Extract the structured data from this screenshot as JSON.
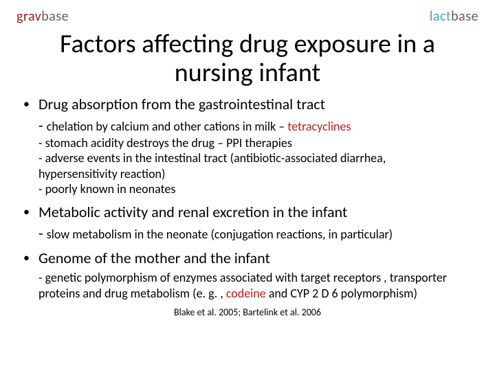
{
  "logos": {
    "left": {
      "part1": "grav",
      "part2": "base"
    },
    "right": {
      "part1": "lact",
      "part2": "base"
    }
  },
  "title": "Factors affecting drug exposure in a nursing infant",
  "bullets": [
    {
      "heading": "Drug absorption from the gastrointestinal tract",
      "sub_lead_prefix": "- ",
      "sub_lead_main": "chelation by calcium and other cations in milk – ",
      "sub_lead_highlight": "tetracyclines",
      "sub_lines": [
        "-  stomach acidity destroys the drug – PPI therapies",
        "-  adverse events in the intestinal tract (antibiotic-associated diarrhea, hypersensitivity reaction)",
        "-  poorly known in neonates"
      ]
    },
    {
      "heading": "Metabolic activity and renal excretion in the infant",
      "sub_lead_prefix": "- ",
      "sub_lead_main": "slow metabolism in the neonate (conjugation reactions, in particular)",
      "sub_lead_highlight": "",
      "sub_lines": []
    },
    {
      "heading": "Genome of the mother and the infant",
      "sub_lead_prefix": "",
      "sub_lead_main": "",
      "sub_lead_highlight": "",
      "sub_html_parts": {
        "a": "- genetic polymorphism of enzymes associated with target receptors , transporter proteins and drug metabolism (e. g. , ",
        "b": "codeine",
        "c": " and CYP 2 D 6 polymorphism)"
      }
    }
  ],
  "citation": "Blake et al. 2005; Bartelink et al. 2006",
  "colors": {
    "text": "#000000",
    "highlight": "#c11c1c",
    "logo_left": "#9b1b1b",
    "logo_right": "#3aa6b8",
    "logo_grey": "#6b5b5b",
    "background": "#ffffff"
  },
  "typography": {
    "title_fontsize": 38,
    "heading_fontsize": 22,
    "body_fontsize": 18,
    "cite_fontsize": 14,
    "font_family": "Calibri"
  }
}
